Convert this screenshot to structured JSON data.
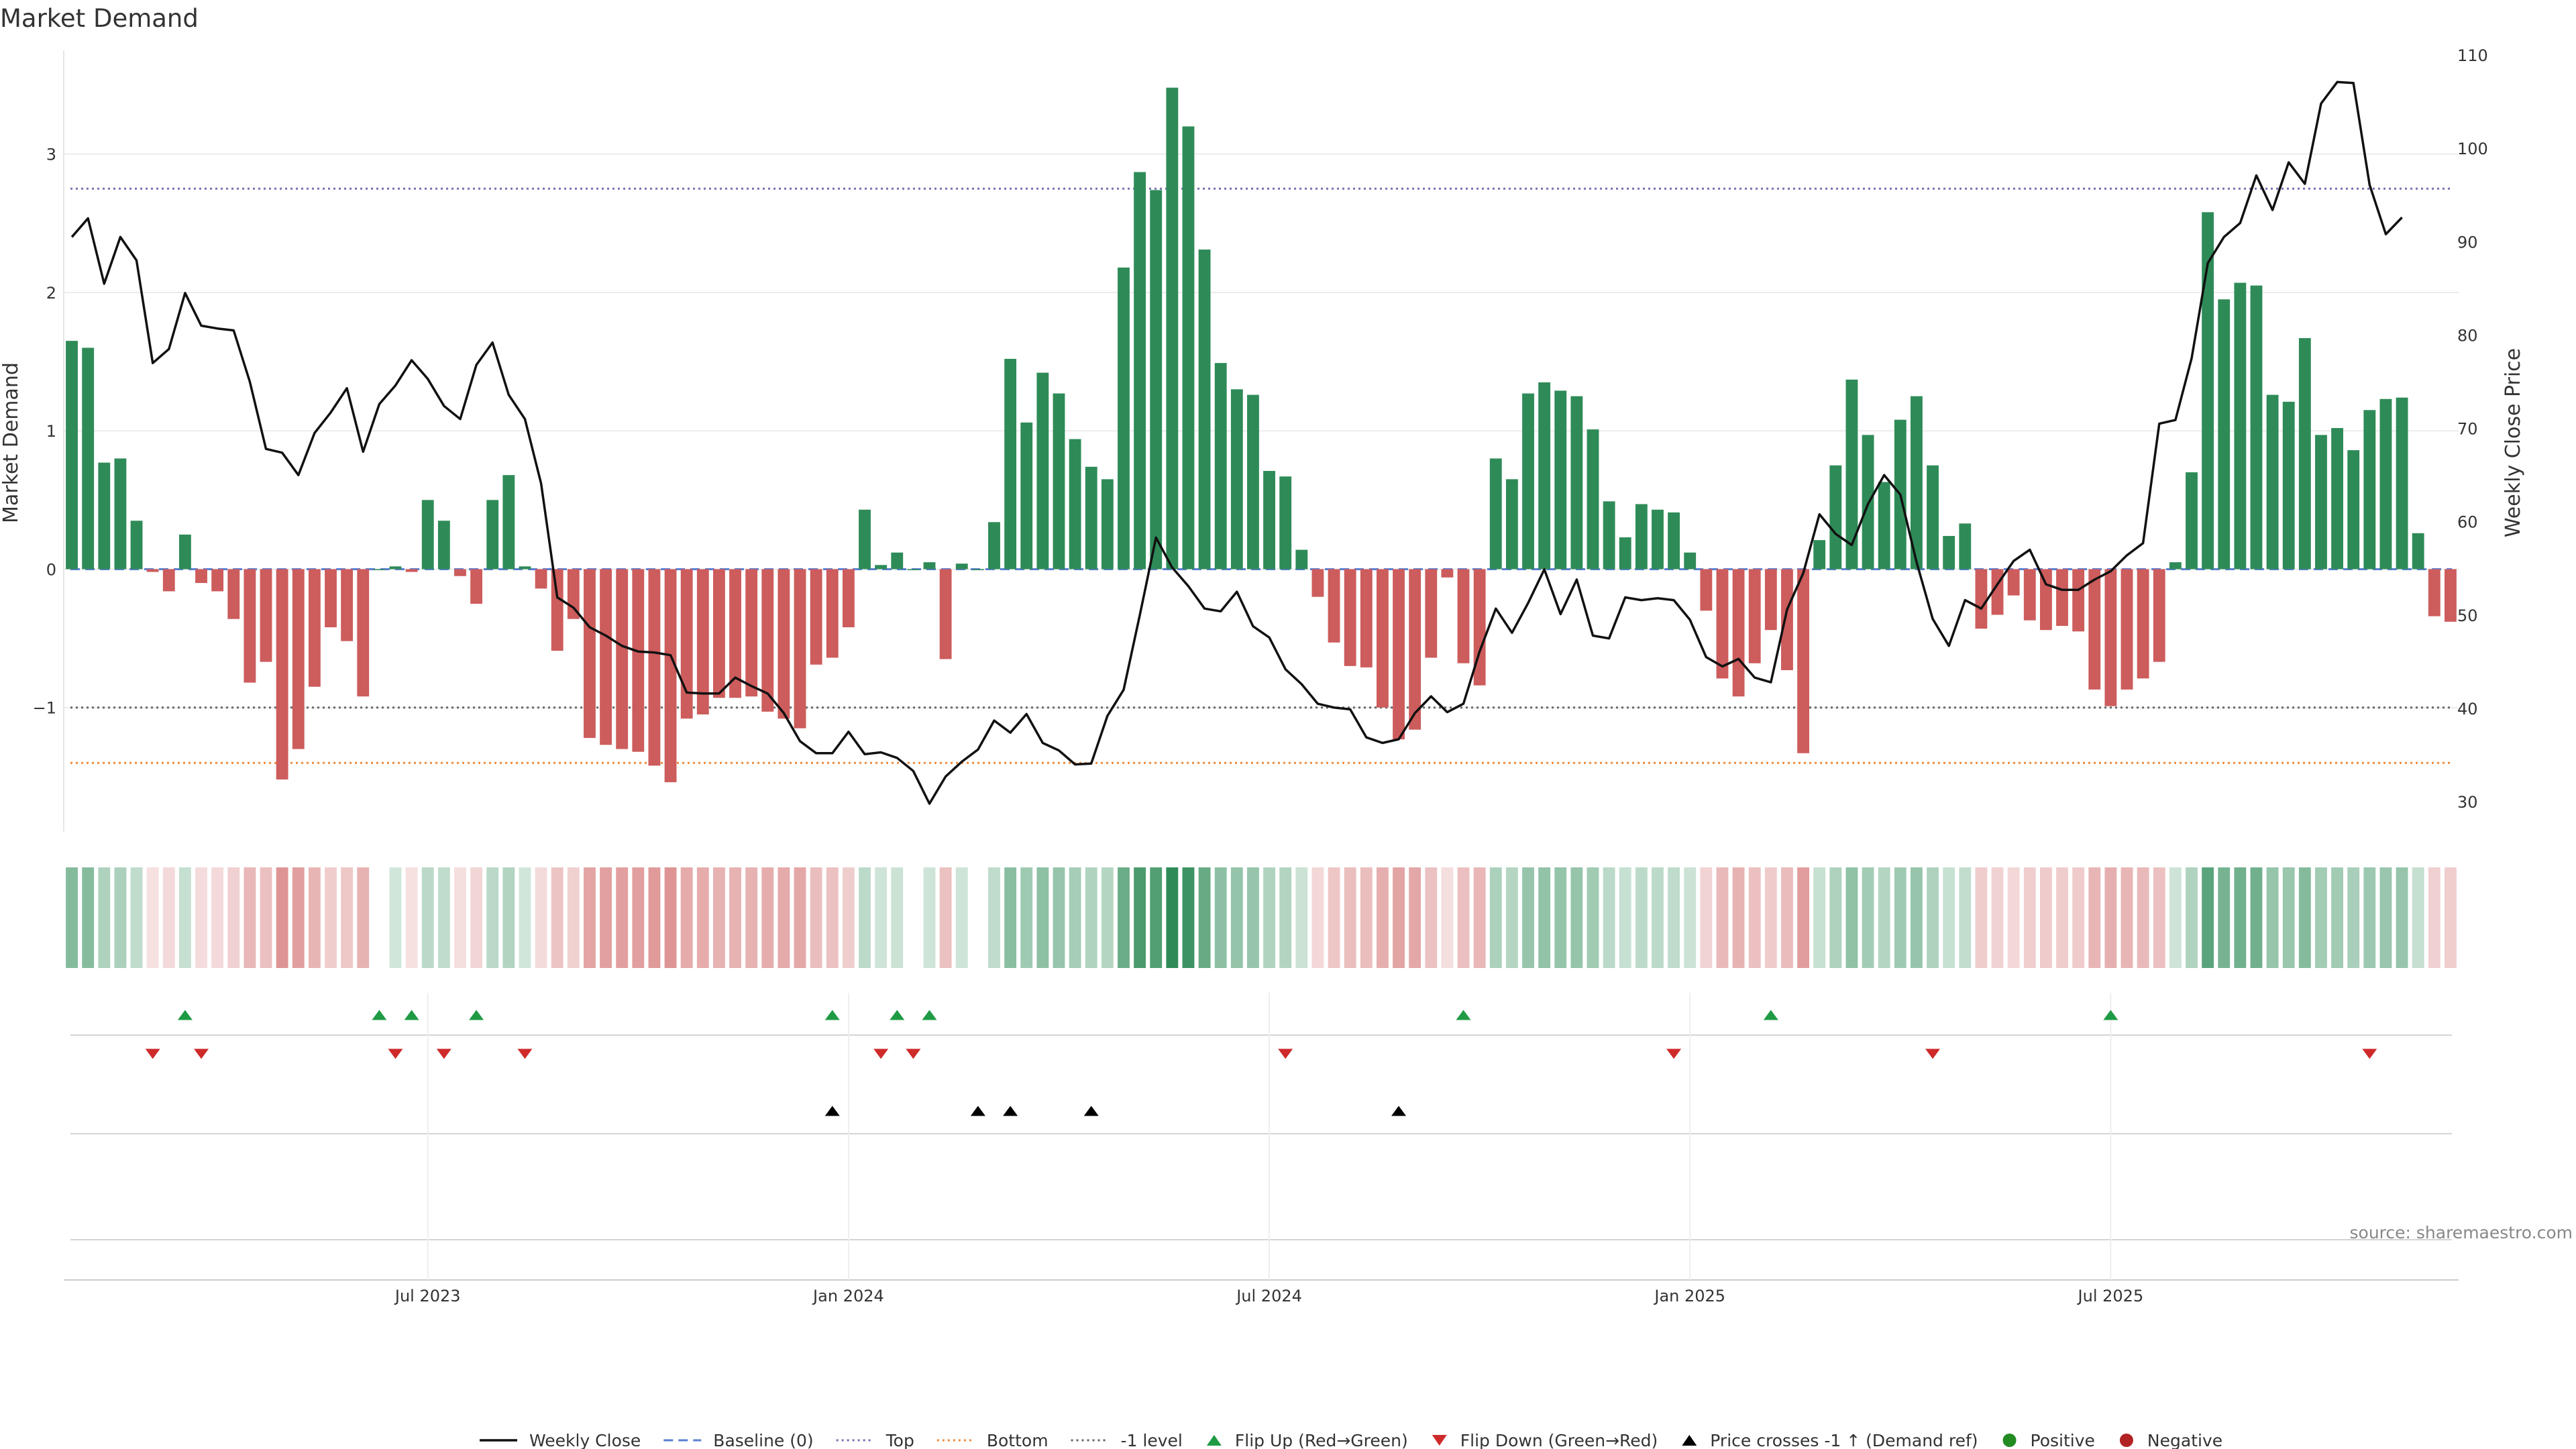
{
  "chart_data": {
    "type": "bar",
    "title": "Market Demand",
    "ylabel": "Market Demand",
    "y2label": "Weekly Close Price",
    "ylim": [
      -1.85,
      3.75
    ],
    "y2lim": [
      27.5,
      110.5
    ],
    "yticks": [
      -1,
      0,
      1,
      2,
      3
    ],
    "ytick_labels": [
      "−1",
      "0",
      "1",
      "2",
      "3"
    ],
    "y2ticks": [
      30,
      40,
      50,
      60,
      70,
      80,
      90,
      100,
      110
    ],
    "ref_lines": {
      "baseline": 0,
      "top": 2.75,
      "minus_one": -1,
      "bottom": -1.4
    },
    "xticks": [
      {
        "index": 22,
        "label": "Jul 2023"
      },
      {
        "index": 48,
        "label": "Jan 2024"
      },
      {
        "index": 74,
        "label": "Jul 2024"
      },
      {
        "index": 100,
        "label": "Jan 2025"
      },
      {
        "index": 126,
        "label": "Jul 2025"
      }
    ],
    "demand": [
      1.65,
      1.6,
      0.77,
      0.8,
      0.35,
      -0.02,
      -0.16,
      0.25,
      -0.1,
      -0.16,
      -0.36,
      -0.82,
      -0.67,
      -1.52,
      -1.3,
      -0.85,
      -0.42,
      -0.52,
      -0.92,
      0,
      0.02,
      -0.02,
      0.5,
      0.35,
      -0.05,
      -0.25,
      0.5,
      0.68,
      0.02,
      -0.14,
      -0.59,
      -0.36,
      -1.22,
      -1.27,
      -1.3,
      -1.32,
      -1.42,
      -1.54,
      -1.08,
      -1.05,
      -0.93,
      -0.93,
      -0.92,
      -1.03,
      -1.08,
      -1.15,
      -0.69,
      -0.64,
      -0.42,
      0.43,
      0.03,
      0.12,
      0,
      0.05,
      -0.65,
      0.04,
      0,
      0.34,
      1.52,
      1.06,
      1.42,
      1.27,
      0.94,
      0.74,
      0.65,
      2.18,
      2.87,
      2.74,
      3.48,
      3.2,
      2.31,
      1.49,
      1.3,
      1.26,
      0.71,
      0.67,
      0.14,
      -0.2,
      -0.53,
      -0.7,
      -0.71,
      -1,
      -1.23,
      -1.16,
      -0.64,
      -0.06,
      -0.68,
      -0.84,
      0.8,
      0.65,
      1.27,
      1.35,
      1.29,
      1.25,
      1.01,
      0.49,
      0.23,
      0.47,
      0.43,
      0.41,
      0.12,
      -0.3,
      -0.79,
      -0.92,
      -0.68,
      -0.44,
      -0.73,
      -1.33,
      0.21,
      0.75,
      1.37,
      0.97,
      0.63,
      1.08,
      1.25,
      0.75,
      0.24,
      0.33,
      -0.43,
      -0.33,
      -0.19,
      -0.37,
      -0.44,
      -0.41,
      -0.45,
      -0.87,
      -0.99,
      -0.87,
      -0.79,
      -0.67,
      0.05,
      0.7,
      2.58,
      1.95,
      2.07,
      2.05,
      1.26,
      1.21,
      1.67,
      0.97,
      1.02,
      0.86,
      1.15,
      1.23,
      1.24,
      0.26,
      -0.34,
      -0.38
    ],
    "price": [
      90.5,
      92.5,
      85.5,
      90.5,
      88,
      77,
      78.5,
      84.5,
      81,
      80.7,
      80.5,
      75,
      67.8,
      67.4,
      65,
      69.5,
      71.7,
      74.3,
      67.5,
      72.6,
      74.6,
      77.3,
      75.3,
      72.4,
      71,
      76.8,
      79.2,
      73.6,
      71,
      64.1,
      51.9,
      50.8,
      48.7,
      47.8,
      46.7,
      46.1,
      46,
      45.7,
      41.7,
      41.6,
      41.6,
      43.3,
      42.4,
      41.6,
      39.5,
      36.5,
      35.2,
      35.2,
      37.5,
      35.1,
      35.3,
      34.7,
      33.3,
      29.8,
      32.7,
      34.3,
      35.6,
      38.7,
      37.4,
      39.4,
      36.3,
      35.5,
      34,
      34.1,
      39.2,
      42,
      50,
      58.3,
      55.1,
      53.1,
      50.7,
      50.4,
      52.5,
      48.8,
      47.6,
      44.2,
      42.6,
      40.5,
      40.1,
      39.9,
      36.9,
      36.3,
      36.7,
      39.5,
      41.3,
      39.6,
      40.5,
      46.1,
      50.7,
      48.1,
      51.3,
      54.9,
      50.1,
      53.8,
      47.8,
      47.5,
      51.9,
      51.6,
      51.8,
      51.6,
      49.5,
      45.5,
      44.5,
      45.3,
      43.3,
      42.8,
      50.6,
      54.5,
      60.8,
      58.7,
      57.5,
      61.9,
      65,
      62.9,
      55.7,
      49.6,
      46.7,
      51.6,
      50.7,
      53.3,
      55.8,
      57,
      53.3,
      52.7,
      52.7,
      53.8,
      54.7,
      56.4,
      57.7,
      70.5,
      70.9,
      77.5,
      87.7,
      90.5,
      92,
      97.1,
      93.4,
      98.5,
      96.2,
      104.8,
      107.1,
      107,
      96.1,
      90.8,
      92.6
    ],
    "flip_up": [
      7,
      19,
      21,
      25,
      47,
      51,
      53,
      86,
      105,
      126
    ],
    "flip_down": [
      5,
      8,
      20,
      23,
      28,
      50,
      52,
      75,
      99,
      115,
      142
    ],
    "price_crosses": [
      47,
      56,
      58,
      63,
      82
    ],
    "legend": [
      {
        "label": "Weekly Close",
        "kind": "line"
      },
      {
        "label": "Baseline (0)",
        "kind": "dash"
      },
      {
        "label": "Top",
        "kind": "dot-purple"
      },
      {
        "label": "Bottom",
        "kind": "dot-orange"
      },
      {
        "label": "-1 level",
        "kind": "dot-gray"
      },
      {
        "label": "Flip Up (Red→Green)",
        "kind": "tri-up-green"
      },
      {
        "label": "Flip Down (Green→Red)",
        "kind": "tri-down-red"
      },
      {
        "label": "Price crosses -1 ↑ (Demand ref)",
        "kind": "tri-up-black"
      },
      {
        "label": "Positive",
        "kind": "circle-green"
      },
      {
        "label": "Negative",
        "kind": "circle-red"
      }
    ],
    "source": "source: sharemaestro.com"
  },
  "colors": {
    "positive": "#2e8b57",
    "negative": "#cd5c5c",
    "price_line": "#111111",
    "baseline": "#5b7fd1",
    "top": "#7a6fb0",
    "bottom": "#ef8a3a",
    "minus_one": "#666666",
    "flip_up": "#1f9a45",
    "flip_down": "#cf2a2a",
    "cross": "#000000",
    "legend_positive": "#228b22",
    "legend_negative": "#b22222"
  }
}
